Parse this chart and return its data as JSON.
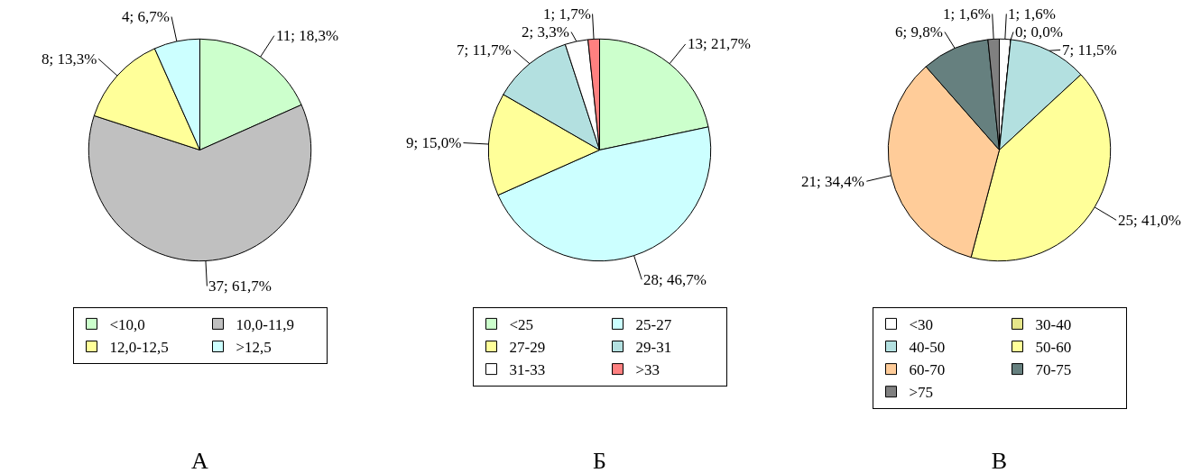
{
  "chart_data": [
    {
      "type": "pie",
      "title": "А",
      "categories": [
        "<10,0",
        "10,0-11,9",
        "12,0-12,5",
        ">12,5"
      ],
      "values": [
        11,
        37,
        8,
        4
      ],
      "colors": [
        "#ccffcc",
        "#c0c0c0",
        "#ffff99",
        "#ccffff"
      ],
      "value_labels": [
        "11; 18,3%",
        "37; 61,7%",
        "8; 13,3%",
        "4; 6,7%"
      ],
      "legend": "bottom"
    },
    {
      "type": "pie",
      "title": "Б",
      "categories": [
        "<25",
        "25-27",
        "27-29",
        "29-31",
        "31-33",
        ">33"
      ],
      "values": [
        13,
        28,
        9,
        7,
        2,
        1
      ],
      "colors": [
        "#ccffcc",
        "#ccffff",
        "#ffff99",
        "#b3e0e0",
        "#ffffff",
        "#ff8080"
      ],
      "value_labels": [
        "13; 21,7%",
        "28; 46,7%",
        "9; 15,0%",
        "7; 11,7%",
        "2; 3,3%",
        "1; 1,7%"
      ],
      "legend": "bottom"
    },
    {
      "type": "pie",
      "title": "В",
      "categories": [
        "<30",
        "30-40",
        "40-50",
        "50-60",
        "60-70",
        "70-75",
        ">75"
      ],
      "values": [
        1,
        0,
        7,
        25,
        21,
        6,
        1
      ],
      "colors": [
        "#ffffff",
        "#e6e68a",
        "#b3e0e0",
        "#ffff99",
        "#ffcc99",
        "#66807f",
        "#808080"
      ],
      "value_labels": [
        "1; 1,6%",
        "0; 0,0%",
        "7; 11,5%",
        "25; 41,0%",
        "21; 34,4%",
        "6; 9,8%",
        "1; 1,6%"
      ],
      "legend": "bottom"
    }
  ]
}
